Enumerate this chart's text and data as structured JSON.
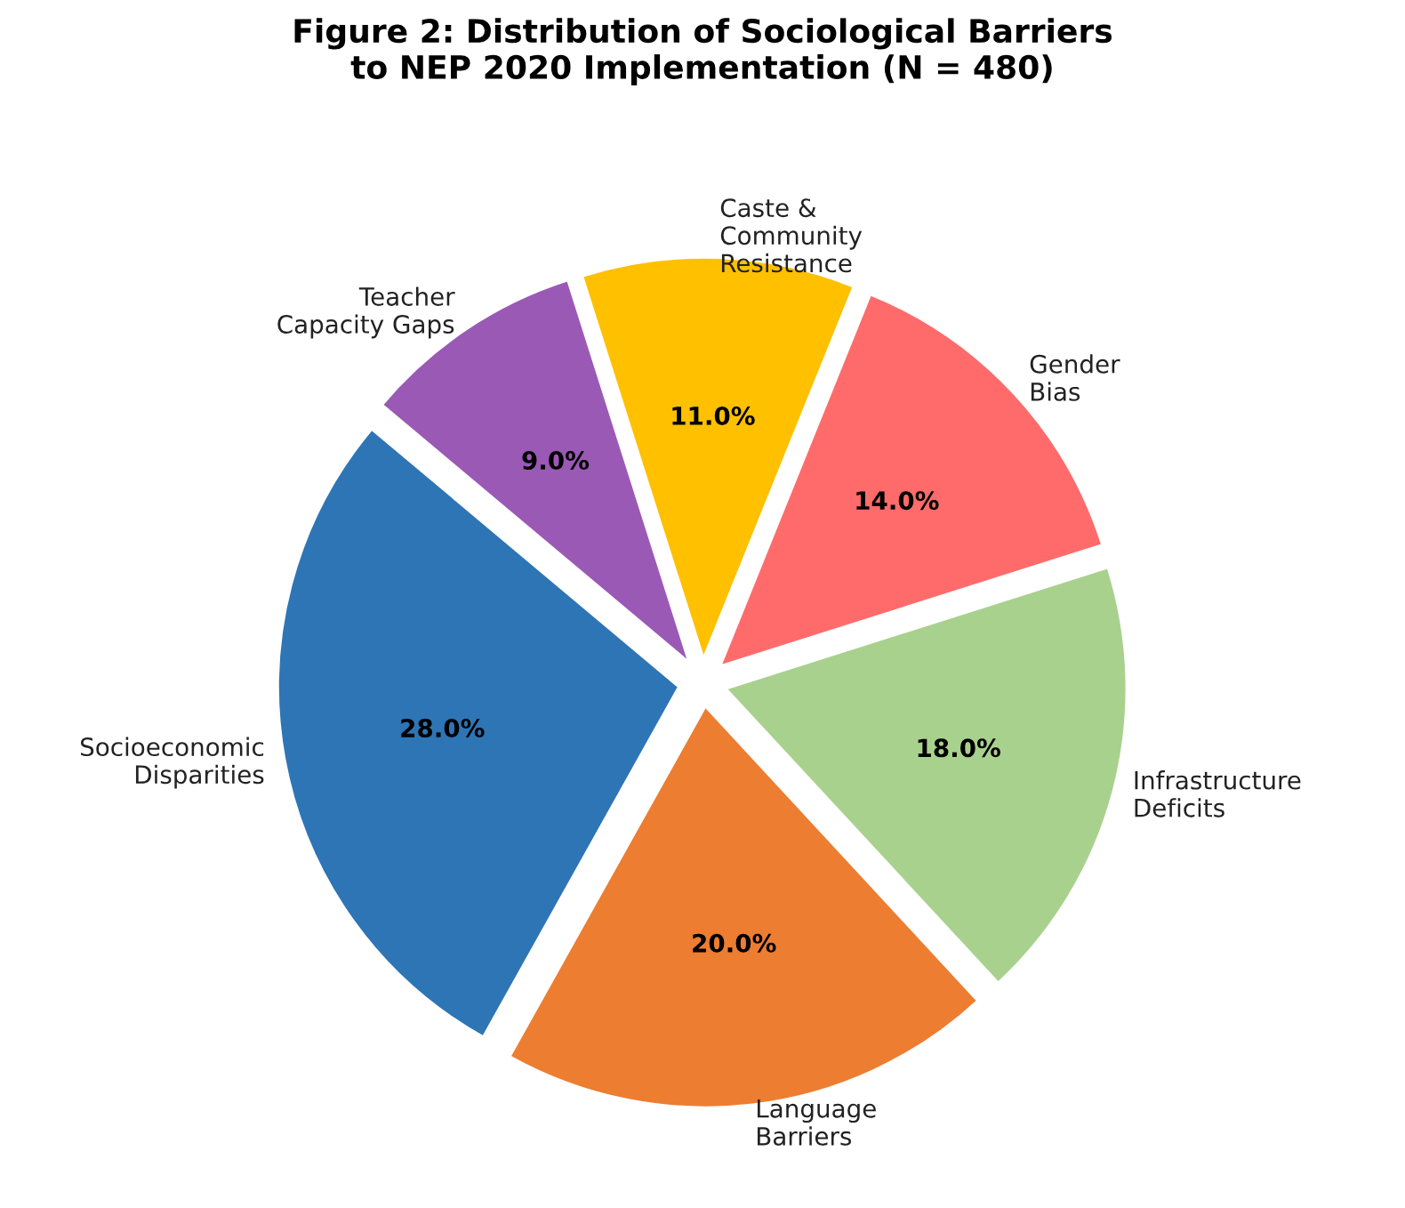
{
  "chart_data": {
    "type": "pie",
    "title": "Figure 2: Distribution of Sociological Barriers\nto NEP 2020 Implementation (N = 480)",
    "categories": [
      "Socioeconomic\nDisparities",
      "Language\nBarriers",
      "Infrastructure\nDeficits",
      "Gender\nBias",
      "Caste &\nCommunity\nResistance",
      "Teacher\nCapacity Gaps"
    ],
    "values": [
      28.0,
      20.0,
      18.0,
      14.0,
      11.0,
      9.0
    ],
    "colors": [
      "#2e75b6",
      "#ed7d31",
      "#a9d18e",
      "#ff6b6b",
      "#ffc000",
      "#9b59b6"
    ],
    "value_labels": [
      "28.0%",
      "20.0%",
      "18.0%",
      "14.0%",
      "11.0%",
      "9.0%"
    ]
  }
}
